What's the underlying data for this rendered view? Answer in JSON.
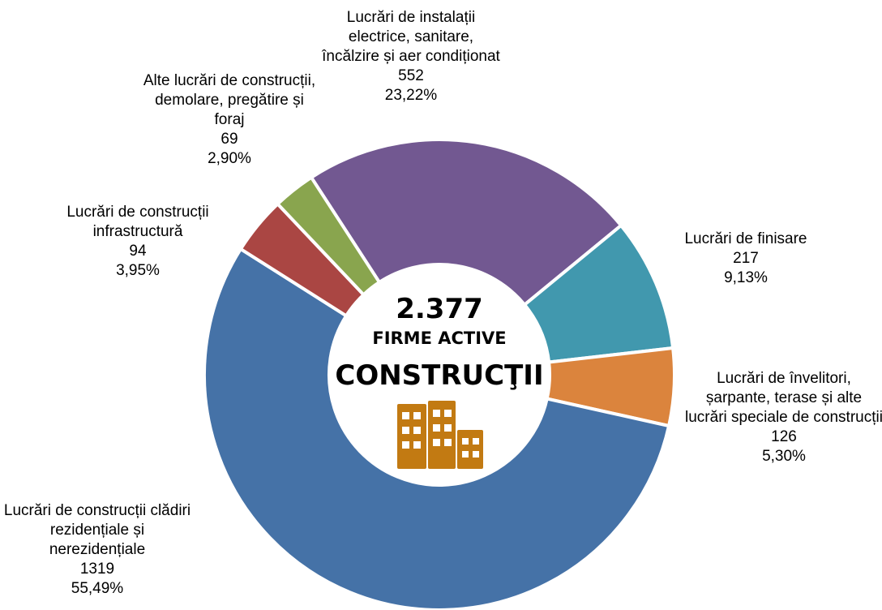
{
  "chart_data": {
    "type": "donut",
    "categories": [
      "Lucrări de instalații electrice, sanitare, încălzire și aer condiționat",
      "Lucrări de finisare",
      "Lucrări de învelitori, șarpante, terase și alte lucrări speciale de construcții",
      "Lucrări de construcții clădiri rezidențiale și nerezidențiale",
      "Lucrări de construcții infrastructură",
      "Alte lucrări de construcții, demolare, pregătire și foraj"
    ],
    "values": [
      552,
      217,
      126,
      1319,
      94,
      69
    ],
    "percents": [
      23.22,
      9.13,
      5.3,
      55.49,
      3.95,
      2.9
    ],
    "percent_labels": [
      "23,22%",
      "9,13%",
      "5,30%",
      "55,49%",
      "3,95%",
      "2,90%"
    ],
    "colors": [
      "#725891",
      "#4198ae",
      "#db843d",
      "#4572a7",
      "#aa4643",
      "#89a54e"
    ],
    "center": {
      "total": "2.377",
      "line1": "FIRME ACTIVE",
      "line2": "CONSTRUCŢII"
    }
  }
}
